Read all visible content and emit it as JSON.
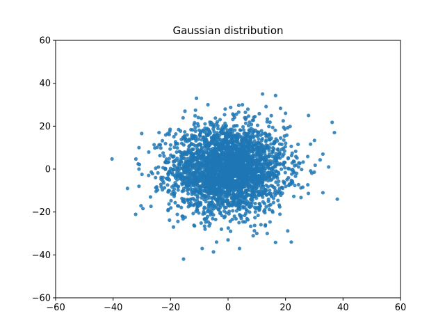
{
  "chart_data": {
    "type": "scatter",
    "title": "Gaussian distribution",
    "xlabel": "",
    "ylabel": "",
    "xlim": [
      -60,
      60
    ],
    "ylim": [
      -60,
      60
    ],
    "x_ticks": [
      -60,
      -40,
      -20,
      0,
      20,
      40,
      60
    ],
    "y_ticks": [
      -60,
      -40,
      -20,
      0,
      20,
      40,
      60
    ],
    "x_tick_labels": [
      "−60",
      "−40",
      "−20",
      "0",
      "20",
      "40",
      "60"
    ],
    "y_tick_labels": [
      "−60",
      "−40",
      "−20",
      "0",
      "20",
      "40",
      "60"
    ],
    "grid": false,
    "marker_color": "#1f77b4",
    "marker_opacity": 0.85,
    "point_count": 3000,
    "distribution": {
      "mean": [
        0,
        0
      ],
      "std": [
        10,
        10
      ]
    },
    "sample_points": [
      [
        37,
        17
      ],
      [
        38,
        -14
      ],
      [
        -35,
        -9
      ],
      [
        12,
        35
      ],
      [
        -11,
        33
      ],
      [
        -9,
        -37
      ],
      [
        4,
        -37
      ],
      [
        22,
        -34
      ],
      [
        -4,
        -34
      ],
      [
        -31,
        10
      ],
      [
        -31,
        0
      ],
      [
        -31,
        -8
      ],
      [
        28,
        25
      ],
      [
        33,
        -11
      ],
      [
        33,
        7
      ],
      [
        35,
        1
      ],
      [
        -24,
        17
      ],
      [
        -27,
        -13
      ],
      [
        -19,
        -27
      ],
      [
        20,
        26
      ],
      [
        -7,
        30
      ],
      [
        -1,
        28
      ],
      [
        5,
        30
      ],
      [
        -15,
        27
      ],
      [
        -8,
        -28
      ],
      [
        10,
        -30
      ],
      [
        13,
        -26
      ],
      [
        0,
        -33
      ]
    ]
  }
}
